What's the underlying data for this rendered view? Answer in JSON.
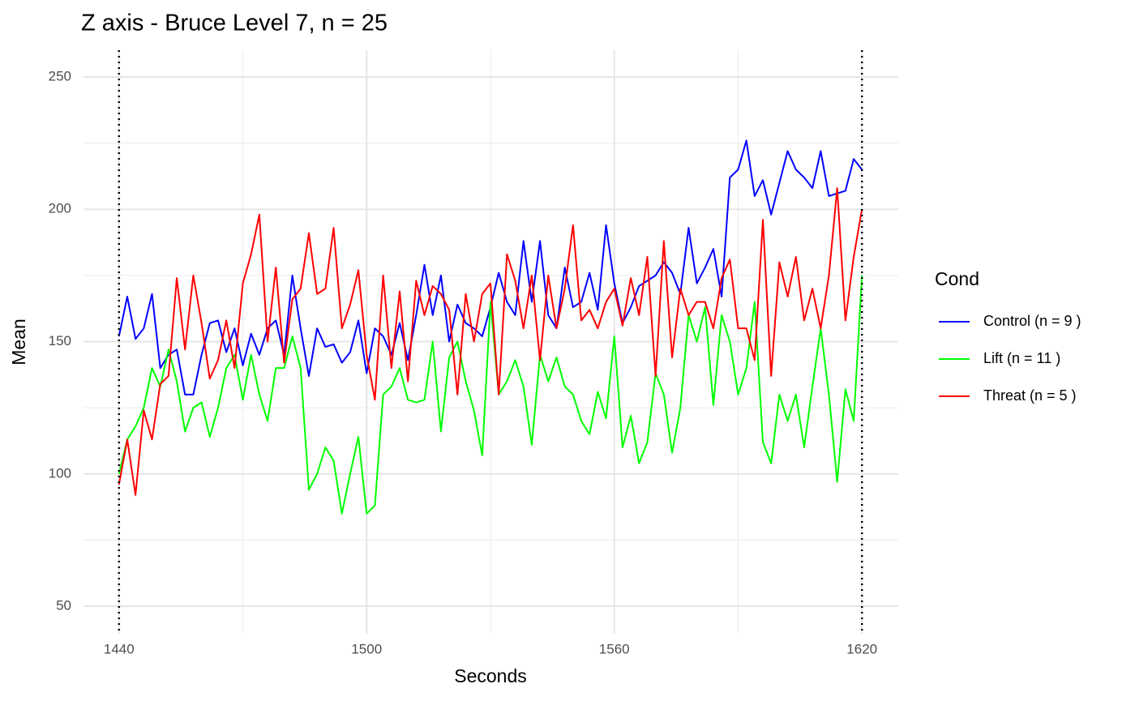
{
  "chart_data": {
    "type": "line",
    "title": "Z axis - Bruce Level 7, n =  25",
    "x_label": "Seconds",
    "y_label": "Mean",
    "legend_title": "Cond",
    "legend_position": "right",
    "xlim": [
      1431.4,
      1628.8
    ],
    "ylim": [
      39.6,
      260.1
    ],
    "xticks": [
      1440,
      1500,
      1560,
      1620
    ],
    "yticks": [
      50,
      100,
      150,
      200,
      250
    ],
    "x_minor_ticks": [
      1470,
      1530,
      1590
    ],
    "y_minor_ticks": [
      75,
      125,
      175,
      225
    ],
    "grid": true,
    "vlines": [
      1440,
      1620
    ],
    "x": [
      1440,
      1442,
      1444,
      1446,
      1448,
      1450,
      1452,
      1454,
      1456,
      1458,
      1460,
      1462,
      1464,
      1466,
      1468,
      1470,
      1472,
      1474,
      1476,
      1478,
      1480,
      1482,
      1484,
      1486,
      1488,
      1490,
      1492,
      1494,
      1496,
      1498,
      1500,
      1502,
      1504,
      1506,
      1508,
      1510,
      1512,
      1514,
      1516,
      1518,
      1520,
      1522,
      1524,
      1526,
      1528,
      1530,
      1532,
      1534,
      1536,
      1538,
      1540,
      1542,
      1544,
      1546,
      1548,
      1550,
      1552,
      1554,
      1556,
      1558,
      1560,
      1562,
      1564,
      1566,
      1568,
      1570,
      1572,
      1574,
      1576,
      1578,
      1580,
      1582,
      1584,
      1586,
      1588,
      1590,
      1592,
      1594,
      1596,
      1598,
      1600,
      1602,
      1604,
      1606,
      1608,
      1610,
      1612,
      1614,
      1616,
      1618,
      1620
    ],
    "series": [
      {
        "name": "Control (n = 9 )",
        "color": "#0000ff",
        "values": [
          152,
          167,
          151,
          155,
          168,
          140,
          145,
          147,
          130,
          130,
          145,
          157,
          158,
          146,
          155,
          141,
          153,
          145,
          155,
          158,
          145,
          175,
          155,
          137,
          155,
          148,
          149,
          142,
          146,
          158,
          138,
          155,
          152,
          145,
          157,
          143,
          160,
          179,
          160,
          175,
          150,
          164,
          157,
          155,
          152,
          163,
          176,
          165,
          160,
          188,
          165,
          188,
          160,
          155,
          178,
          163,
          165,
          176,
          162,
          194,
          172,
          157,
          163,
          171,
          173,
          175,
          180,
          176,
          168,
          193,
          172,
          178,
          185,
          167,
          212,
          215,
          226,
          205,
          211,
          198,
          210,
          222,
          215,
          212,
          208,
          222,
          205,
          206,
          207,
          219,
          215
        ]
      },
      {
        "name": "Lift (n = 11 )",
        "color": "#00ff00",
        "values": [
          100,
          113,
          118,
          125,
          140,
          133,
          147,
          135,
          116,
          125,
          127,
          114,
          125,
          140,
          145,
          128,
          145,
          130,
          120,
          140,
          140,
          152,
          140,
          94,
          100,
          110,
          105,
          85,
          100,
          114,
          85,
          88,
          130,
          133,
          140,
          128,
          127,
          128,
          150,
          116,
          144,
          150,
          135,
          124,
          107,
          165,
          130,
          135,
          143,
          133,
          111,
          145,
          135,
          144,
          133,
          130,
          120,
          115,
          131,
          121,
          152,
          110,
          122,
          104,
          112,
          138,
          130,
          108,
          125,
          160,
          150,
          163,
          126,
          160,
          150,
          130,
          140,
          165,
          112,
          104,
          130,
          120,
          130,
          110,
          133,
          155,
          130,
          97,
          132,
          120,
          175
        ]
      },
      {
        "name": "Threat (n = 5 )",
        "color": "#ff0000",
        "values": [
          96,
          113,
          92,
          124,
          113,
          134,
          137,
          174,
          147,
          175,
          157,
          136,
          143,
          158,
          140,
          172,
          183,
          198,
          150,
          178,
          142,
          166,
          170,
          191,
          168,
          170,
          193,
          155,
          164,
          177,
          145,
          128,
          175,
          140,
          169,
          135,
          173,
          160,
          171,
          168,
          162,
          130,
          168,
          150,
          168,
          172,
          130,
          183,
          173,
          155,
          175,
          143,
          175,
          155,
          170,
          194,
          158,
          162,
          155,
          165,
          170,
          156,
          174,
          160,
          182,
          137,
          188,
          144,
          170,
          160,
          165,
          165,
          155,
          174,
          181,
          155,
          155,
          143,
          196,
          137,
          180,
          167,
          182,
          158,
          170,
          155,
          175,
          208,
          158,
          182,
          200
        ]
      }
    ]
  }
}
